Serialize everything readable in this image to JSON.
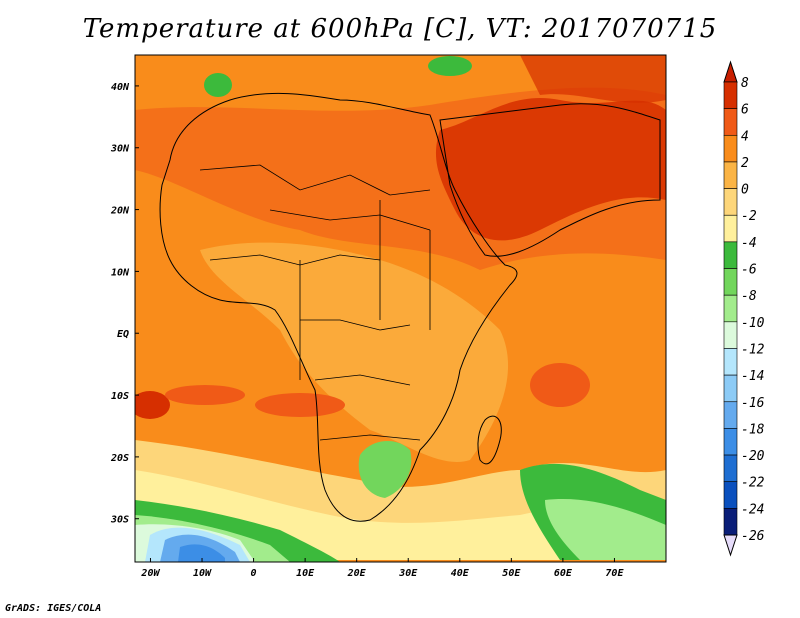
{
  "title": "Temperature at 600hPa [C], VT: 2017070715",
  "credit": "GrADS: IGES/COLA",
  "x_ticks": [
    "20W",
    "10W",
    "0",
    "10E",
    "20E",
    "30E",
    "40E",
    "50E",
    "60E",
    "70E"
  ],
  "y_ticks": [
    "40N",
    "30N",
    "20N",
    "10N",
    "EQ",
    "10S",
    "20S",
    "30S"
  ],
  "colorbar": {
    "labels": [
      "8",
      "6",
      "4",
      "2",
      "0",
      "-2",
      "-4",
      "-6",
      "-8",
      "-10",
      "-12",
      "-14",
      "-16",
      "-18",
      "-20",
      "-22",
      "-24",
      "-26"
    ],
    "colors": [
      "#d62f00",
      "#f05a17",
      "#f98c1b",
      "#fbb445",
      "#fdd67a",
      "#fff09c",
      "#3cba3c",
      "#72d65c",
      "#a2ec8c",
      "#dcfadc",
      "#b4e6fc",
      "#8ccbf6",
      "#64aaee",
      "#3c8ee6",
      "#1e6ed2",
      "#0a50be",
      "#0a1e78"
    ],
    "under_color": "#e6dcfa",
    "over_color": "#c81e00"
  },
  "extent": {
    "lon": [
      -23,
      80
    ],
    "lat": [
      -37,
      45
    ]
  }
}
